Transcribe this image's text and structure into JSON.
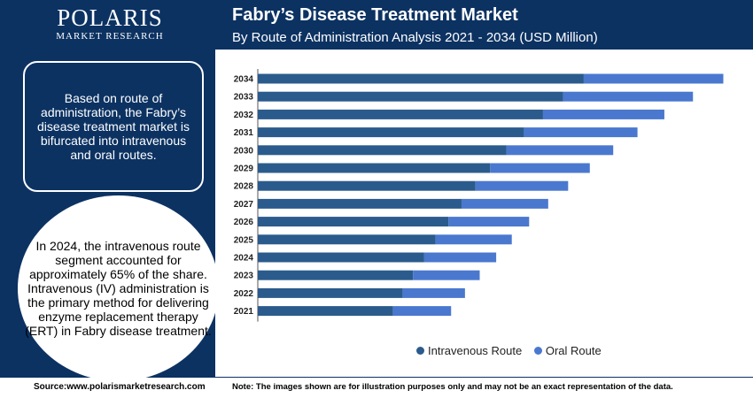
{
  "logo": {
    "name": "POLARIS",
    "tagline": "MARKET RESEARCH"
  },
  "header": {
    "title": "Fabry’s Disease Treatment Market",
    "subtitle": "By Route of Administration Analysis 2021 - 2034 (USD Million)"
  },
  "sidebar": {
    "summary": "Based on route of administration, the Fabry’s disease treatment market is bifurcated into intravenous and oral routes.",
    "highlight": "In 2024, the intravenous route segment accounted for approximately 65% of the share. Intravenous (IV) administration is the primary method for delivering enzyme replacement therapy (ERT) in Fabry disease treatment."
  },
  "footer": {
    "source": "Source:www.polarismarketresearch.com",
    "note": "Note: The images shown are for illustration purposes only and may not be an exact representation of the data."
  },
  "colors": {
    "brand_navy": "#0c3262",
    "intravenous": "#2b5b8c",
    "oral": "#4a78cf"
  },
  "chart_data": {
    "type": "bar",
    "orientation": "horizontal",
    "stacked": true,
    "categories": [
      "2034",
      "2033",
      "2032",
      "2031",
      "2030",
      "2029",
      "2028",
      "2027",
      "2026",
      "2025",
      "2024",
      "2023",
      "2022",
      "2021"
    ],
    "series": [
      {
        "name": "Intravenous Route",
        "color": "#2b5b8c",
        "values": [
          376,
          352,
          329,
          307,
          287,
          268,
          251,
          235,
          220,
          205,
          192,
          179,
          167,
          156
        ]
      },
      {
        "name": "Oral Route",
        "color": "#4a78cf",
        "values": [
          161,
          150,
          140,
          131,
          123,
          115,
          107,
          100,
          93,
          88,
          83,
          77,
          72,
          67
        ]
      }
    ],
    "xlim": [
      0,
      560
    ],
    "legend_position": "bottom",
    "grid": false
  }
}
